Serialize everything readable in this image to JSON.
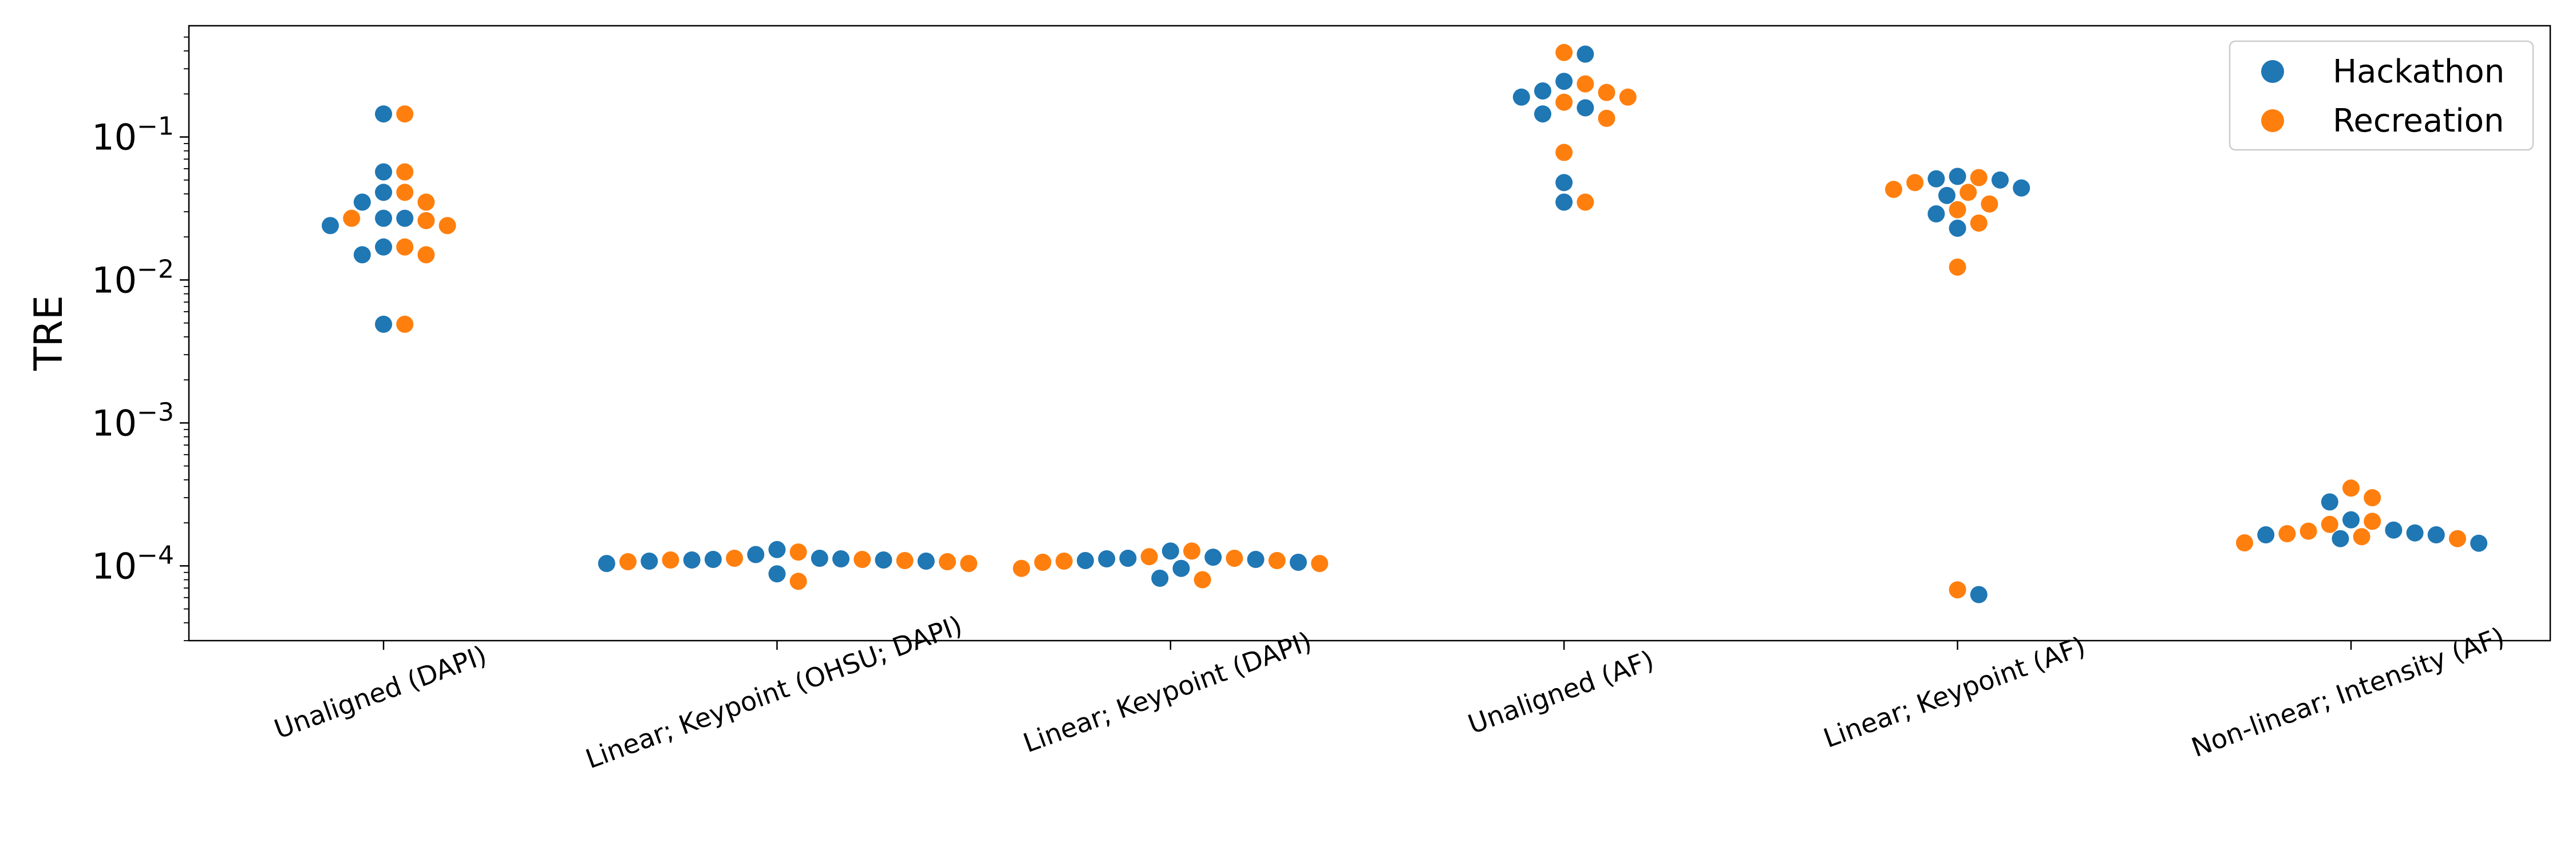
{
  "chart_data": {
    "type": "scatter",
    "title": "",
    "xlabel": "",
    "ylabel": "TRE",
    "yscale": "log",
    "ylim": [
      3e-05,
      0.6
    ],
    "yticks": [
      {
        "value": 0.1,
        "base": "10",
        "exp": "−1"
      },
      {
        "value": 0.01,
        "base": "10",
        "exp": "−2"
      },
      {
        "value": 0.001,
        "base": "10",
        "exp": "−3"
      },
      {
        "value": 0.0001,
        "base": "10",
        "exp": "−4"
      }
    ],
    "categories": [
      "Unaligned (DAPI)",
      "Linear; Keypoint (OHSU; DAPI)",
      "Linear; Keypoint (DAPI)",
      "Unaligned (AF)",
      "Linear; Keypoint (AF)",
      "Non-linear; Intensity (AF)"
    ],
    "legend_position": "top-right",
    "grid": false,
    "series": [
      {
        "name": "Hackathon",
        "color": "#1f77b4",
        "points": [
          [
            0,
            0.027
          ],
          [
            0,
            0.027
          ],
          [
            0,
            0.024
          ],
          [
            0,
            0.041
          ],
          [
            0,
            0.035
          ],
          [
            0,
            0.017
          ],
          [
            0,
            0.015
          ],
          [
            0,
            0.057
          ],
          [
            0,
            0.145
          ],
          [
            0,
            0.0049
          ],
          [
            1,
            0.000113
          ],
          [
            1,
            0.000111
          ],
          [
            1,
            0.000108
          ],
          [
            1,
            8.8e-05
          ],
          [
            1,
            0.000104
          ],
          [
            1,
            0.000108
          ],
          [
            1,
            0.00011
          ],
          [
            1,
            0.00011
          ],
          [
            1,
            0.000112
          ],
          [
            1,
            0.00012
          ],
          [
            1,
            0.00013
          ],
          [
            2,
            0.000127
          ],
          [
            2,
            0.000113
          ],
          [
            2,
            0.000111
          ],
          [
            2,
            0.000109
          ],
          [
            2,
            0.000106
          ],
          [
            2,
            8.2e-05
          ],
          [
            2,
            9.6e-05
          ],
          [
            2,
            0.000112
          ],
          [
            2,
            0.000115
          ],
          [
            3,
            0.245
          ],
          [
            3,
            0.21
          ],
          [
            3,
            0.145
          ],
          [
            3,
            0.16
          ],
          [
            3,
            0.38
          ],
          [
            3,
            0.19
          ],
          [
            3,
            0.048
          ],
          [
            3,
            0.035
          ],
          [
            4,
            0.051
          ],
          [
            4,
            0.053
          ],
          [
            4,
            0.039
          ],
          [
            4,
            0.044
          ],
          [
            4,
            0.05
          ],
          [
            4,
            0.029
          ],
          [
            4,
            0.023
          ],
          [
            4,
            6.3e-05
          ],
          [
            5,
            0.00028
          ],
          [
            5,
            0.000165
          ],
          [
            5,
            0.000144
          ],
          [
            5,
            0.000155
          ],
          [
            5,
            0.000165
          ],
          [
            5,
            0.00017
          ],
          [
            5,
            0.000178
          ],
          [
            5,
            0.00021
          ]
        ]
      },
      {
        "name": "Recreation",
        "color": "#ff7f0e",
        "points": [
          [
            0,
            0.027
          ],
          [
            0,
            0.024
          ],
          [
            0,
            0.057
          ],
          [
            0,
            0.145
          ],
          [
            0,
            0.035
          ],
          [
            0,
            0.026
          ],
          [
            0,
            0.041
          ],
          [
            0,
            0.017
          ],
          [
            0,
            0.015
          ],
          [
            0,
            0.0049
          ],
          [
            1,
            0.000125
          ],
          [
            1,
            0.000111
          ],
          [
            1,
            0.00011
          ],
          [
            1,
            0.000109
          ],
          [
            1,
            0.000107
          ],
          [
            1,
            7.8e-05
          ],
          [
            1,
            0.000104
          ],
          [
            1,
            0.000107
          ],
          [
            1,
            0.000113
          ],
          [
            2,
            0.000116
          ],
          [
            2,
            9.6e-05
          ],
          [
            2,
            8e-05
          ],
          [
            2,
            0.000104
          ],
          [
            2,
            0.000106
          ],
          [
            2,
            0.000108
          ],
          [
            2,
            0.000109
          ],
          [
            2,
            0.000113
          ],
          [
            2,
            0.000127
          ],
          [
            3,
            0.035
          ],
          [
            3,
            0.19
          ],
          [
            3,
            0.39
          ],
          [
            3,
            0.235
          ],
          [
            3,
            0.205
          ],
          [
            3,
            0.175
          ],
          [
            3,
            0.135
          ],
          [
            3,
            0.078
          ],
          [
            4,
            0.048
          ],
          [
            4,
            0.043
          ],
          [
            4,
            0.034
          ],
          [
            4,
            0.025
          ],
          [
            4,
            0.031
          ],
          [
            4,
            0.041
          ],
          [
            4,
            0.052
          ],
          [
            4,
            0.0123
          ],
          [
            4,
            6.8e-05
          ],
          [
            5,
            0.00035
          ],
          [
            5,
            0.000195
          ],
          [
            5,
            0.000175
          ],
          [
            5,
            0.000168
          ],
          [
            5,
            0.00016
          ],
          [
            5,
            0.000145
          ],
          [
            5,
            0.000155
          ],
          [
            5,
            0.000205
          ],
          [
            5,
            0.0003
          ]
        ]
      }
    ]
  }
}
